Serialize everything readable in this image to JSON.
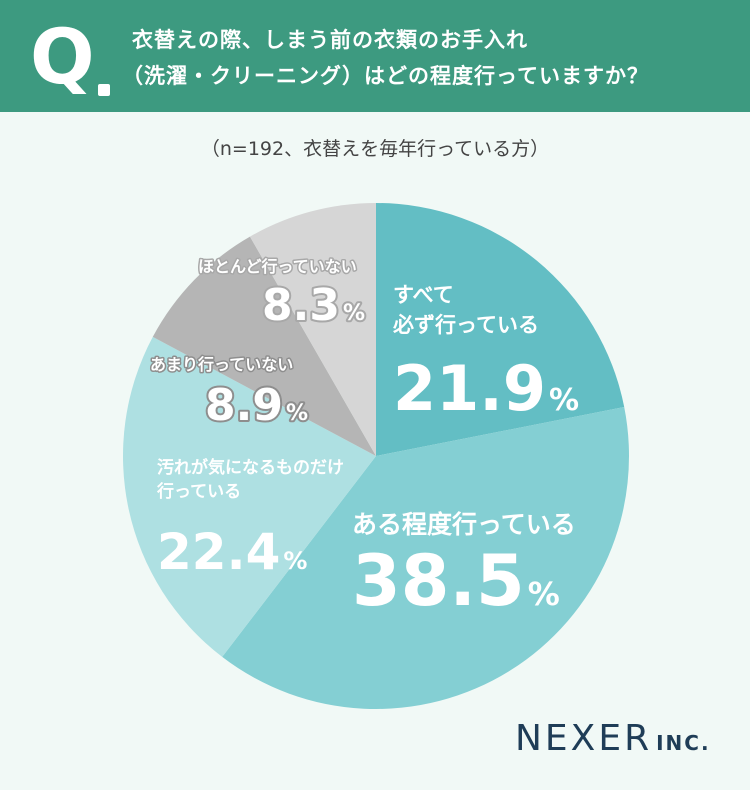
{
  "question": {
    "mark": "Q",
    "line1": "衣替えの際、しまう前の衣類のお手入れ",
    "line2": "（洗濯・クリーニング）はどの程度行っていますか？"
  },
  "note": "（n=192、衣替えを毎年行っている方）",
  "chart_data": {
    "type": "pie",
    "slices": [
      {
        "label_lines": [
          "すべて",
          "必ず行っている"
        ],
        "value": 21.9,
        "value_text": "21.9",
        "color": "#63bec4"
      },
      {
        "label_lines": [
          "ある程度行っている"
        ],
        "value": 38.5,
        "value_text": "38.5",
        "color": "#84cfd3"
      },
      {
        "label_lines": [
          "汚れが気になるものだけ",
          "行っている"
        ],
        "value": 22.4,
        "value_text": "22.4",
        "color": "#aee0e2"
      },
      {
        "label_lines": [
          "あまり行っていない"
        ],
        "value": 8.9,
        "value_text": "8.9",
        "color": "#b5b5b5"
      },
      {
        "label_lines": [
          "ほとんど行っていない"
        ],
        "value": 8.3,
        "value_text": "8.3",
        "color": "#d6d6d6"
      }
    ],
    "unit": "%"
  },
  "logo": {
    "main": "NEXER",
    "sub": "INC."
  }
}
